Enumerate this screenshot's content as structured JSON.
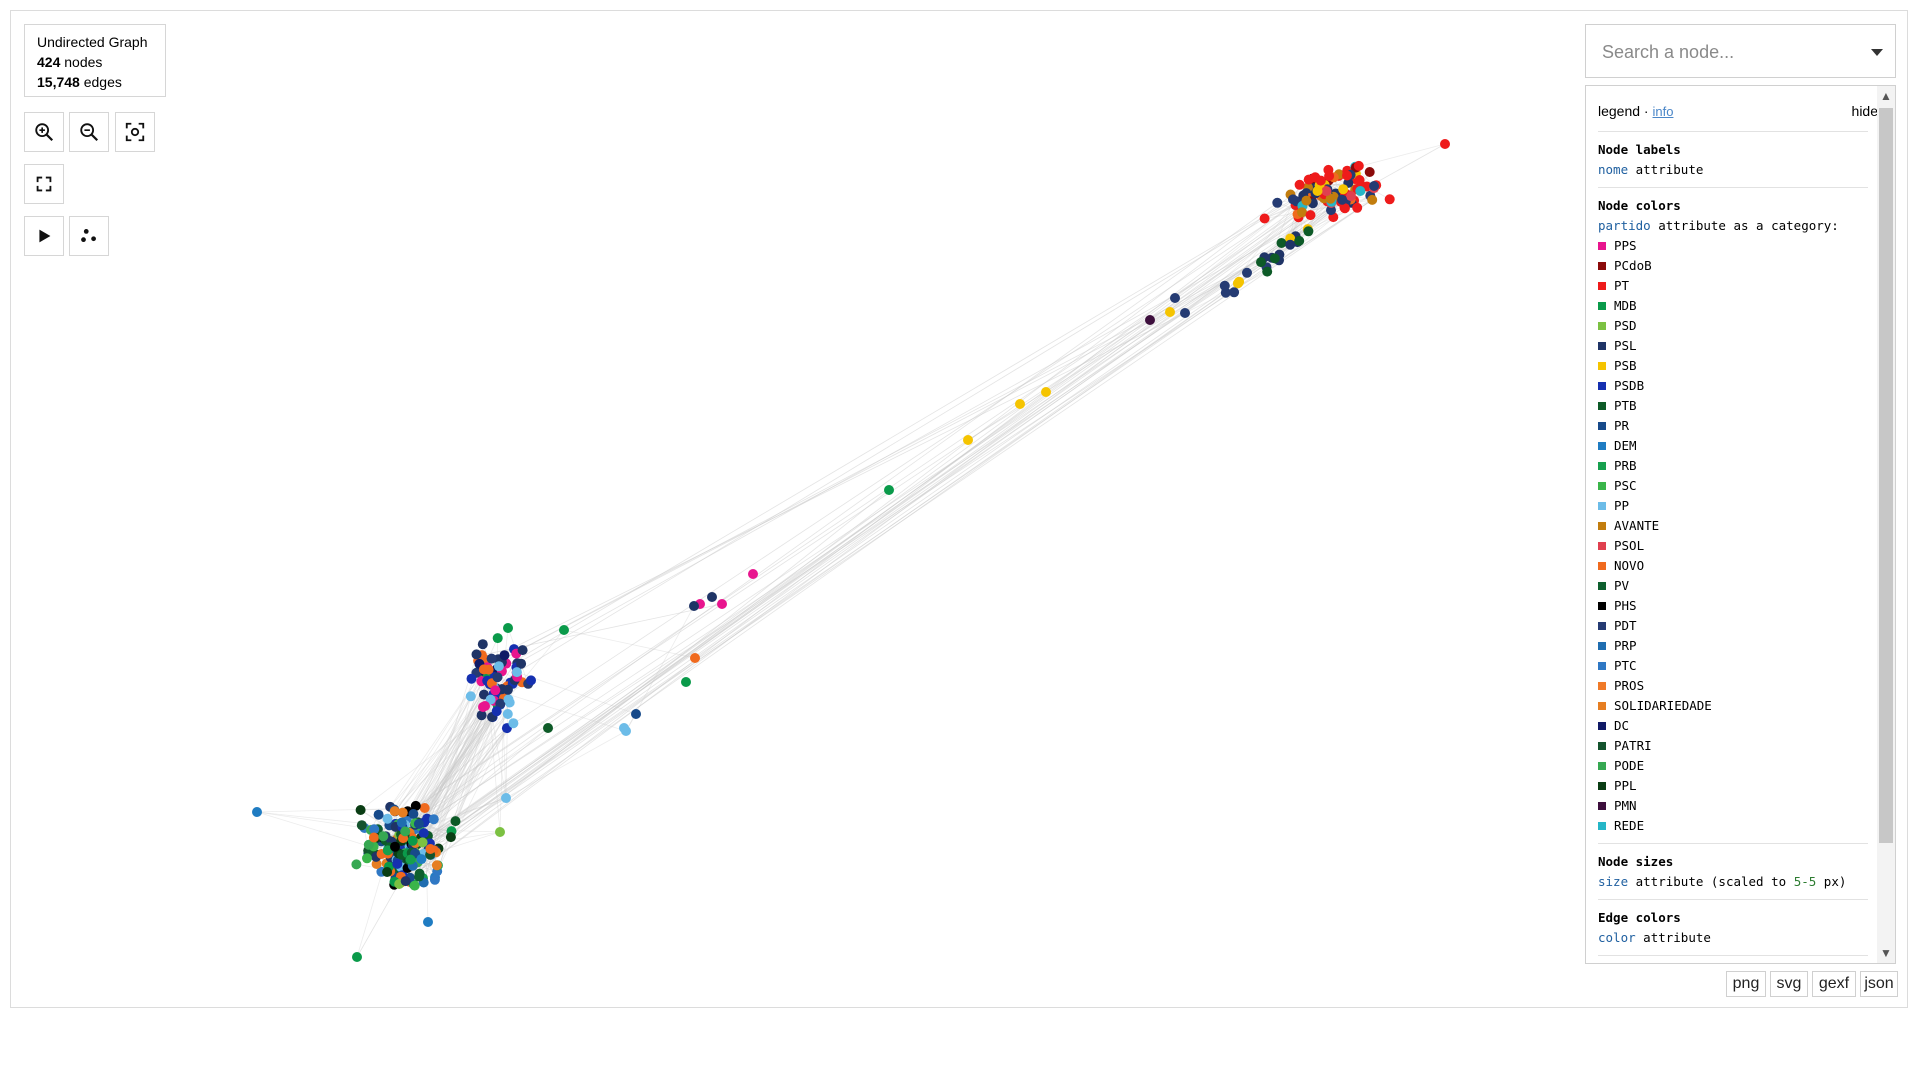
{
  "stats": {
    "graph_type": "Undirected Graph",
    "nodes_count": "424",
    "nodes_label": "nodes",
    "edges_count": "15,748",
    "edges_label": "edges"
  },
  "controls": [
    "zoom-in-icon",
    "zoom-out-icon",
    "reset-view-icon",
    "fullscreen-icon",
    "play-icon",
    "layout-icon"
  ],
  "search": {
    "placeholder": "Search a node..."
  },
  "legend": {
    "title": "legend",
    "sep": " · ",
    "info_link": "info",
    "hide_label": "hide",
    "node_labels": {
      "title": "Node labels",
      "attr": "nome",
      "text": " attribute"
    },
    "node_colors": {
      "title": "Node colors",
      "attr": "partido",
      "text": " attribute as a category:",
      "categories": [
        {
          "name": "PPS",
          "color": "#e8158e"
        },
        {
          "name": "PCdoB",
          "color": "#8b0a0a"
        },
        {
          "name": "PT",
          "color": "#ee1b1b"
        },
        {
          "name": "MDB",
          "color": "#0a9a4a"
        },
        {
          "name": "PSD",
          "color": "#7cc142"
        },
        {
          "name": "PSL",
          "color": "#1f3466"
        },
        {
          "name": "PSB",
          "color": "#f5c400"
        },
        {
          "name": "PSDB",
          "color": "#1530b0"
        },
        {
          "name": "PTB",
          "color": "#0d5a27"
        },
        {
          "name": "PR",
          "color": "#174a8a"
        },
        {
          "name": "DEM",
          "color": "#1f7cc2"
        },
        {
          "name": "PRB",
          "color": "#17a04e"
        },
        {
          "name": "PSC",
          "color": "#3ab54a"
        },
        {
          "name": "PP",
          "color": "#6cbce8"
        },
        {
          "name": "AVANTE",
          "color": "#c27d0e"
        },
        {
          "name": "PSOL",
          "color": "#e0404f"
        },
        {
          "name": "NOVO",
          "color": "#f06a1e"
        },
        {
          "name": "PV",
          "color": "#0e5f2e"
        },
        {
          "name": "PHS",
          "color": "#000000"
        },
        {
          "name": "PDT",
          "color": "#253b73"
        },
        {
          "name": "PRP",
          "color": "#1f6db0"
        },
        {
          "name": "PTC",
          "color": "#2f78c4"
        },
        {
          "name": "PROS",
          "color": "#f07a28"
        },
        {
          "name": "SOLIDARIEDADE",
          "color": "#e67e22"
        },
        {
          "name": "DC",
          "color": "#101a66"
        },
        {
          "name": "PATRI",
          "color": "#14532d"
        },
        {
          "name": "PODE",
          "color": "#36a852"
        },
        {
          "name": "PPL",
          "color": "#0a3d14"
        },
        {
          "name": "PMN",
          "color": "#3d0f3d"
        },
        {
          "name": "REDE",
          "color": "#25b6c7"
        }
      ]
    },
    "node_sizes": {
      "title": "Node sizes",
      "attr": "size",
      "text_a": " attribute (scaled to ",
      "num": "5-5",
      "text_b": " px)"
    },
    "edge_colors": {
      "title": "Edge colors",
      "attr": "color",
      "text": " attribute"
    }
  },
  "export": [
    "png",
    "svg",
    "gexf",
    "json"
  ]
}
